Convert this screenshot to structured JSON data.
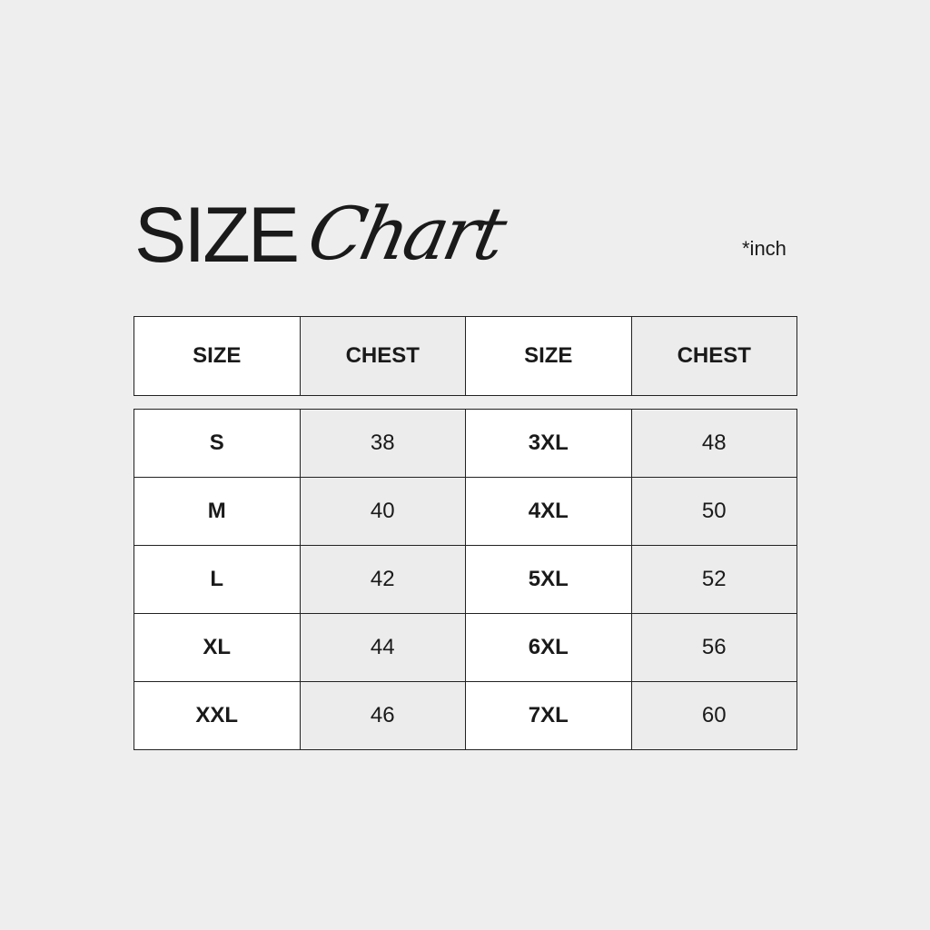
{
  "title": {
    "main": "SIZE",
    "script": "Chart"
  },
  "unit_note": "*inch",
  "headers": [
    "SIZE",
    "CHEST",
    "SIZE",
    "CHEST"
  ],
  "rows": [
    [
      "S",
      "38",
      "3XL",
      "48"
    ],
    [
      "M",
      "40",
      "4XL",
      "50"
    ],
    [
      "L",
      "42",
      "5XL",
      "52"
    ],
    [
      "XL",
      "44",
      "6XL",
      "56"
    ],
    [
      "XXL",
      "46",
      "7XL",
      "60"
    ]
  ]
}
